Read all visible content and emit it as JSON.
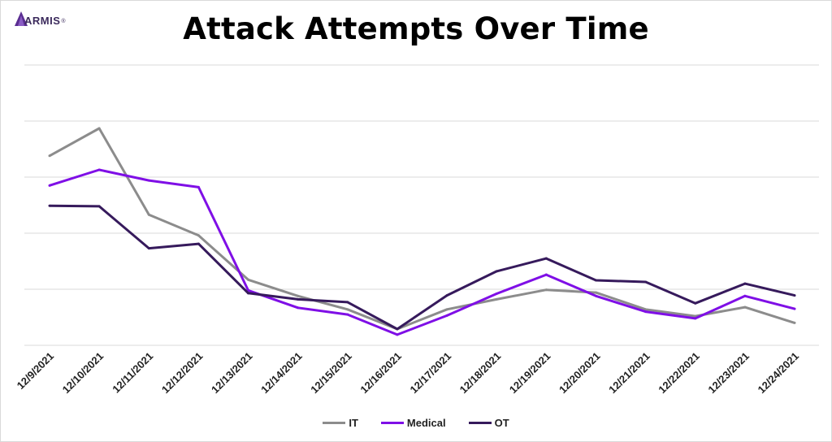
{
  "logo": {
    "text": "ARMIS",
    "reg": "®"
  },
  "chart_data": {
    "type": "line",
    "title": "Attack Attempts Over Time",
    "xlabel": "",
    "ylabel": "",
    "categories": [
      "12/9/2021",
      "12/10/2021",
      "12/11/2021",
      "12/12/2021",
      "12/13/2021",
      "12/14/2021",
      "12/15/2021",
      "12/16/2021",
      "12/17/2021",
      "12/18/2021",
      "12/19/2021",
      "12/20/2021",
      "12/21/2021",
      "12/22/2021",
      "12/23/2021",
      "12/24/2021"
    ],
    "ylim": [
      0,
      5
    ],
    "y_tick_labels_shown": false,
    "grid": true,
    "legend_position": "bottom",
    "series": [
      {
        "name": "IT",
        "color": "#8c8c8c",
        "values": [
          3.38,
          3.87,
          2.33,
          1.96,
          1.17,
          0.88,
          0.64,
          0.29,
          0.64,
          0.82,
          0.99,
          0.94,
          0.64,
          0.52,
          0.68,
          0.4
        ]
      },
      {
        "name": "Medical",
        "color": "#7f0fe6",
        "values": [
          2.85,
          3.13,
          2.94,
          2.82,
          0.98,
          0.67,
          0.55,
          0.19,
          0.53,
          0.92,
          1.26,
          0.88,
          0.6,
          0.48,
          0.88,
          0.65
        ]
      },
      {
        "name": "OT",
        "color": "#361a5c",
        "values": [
          2.49,
          2.48,
          1.73,
          1.81,
          0.93,
          0.82,
          0.77,
          0.29,
          0.89,
          1.32,
          1.55,
          1.16,
          1.13,
          0.75,
          1.1,
          0.89
        ]
      }
    ]
  }
}
